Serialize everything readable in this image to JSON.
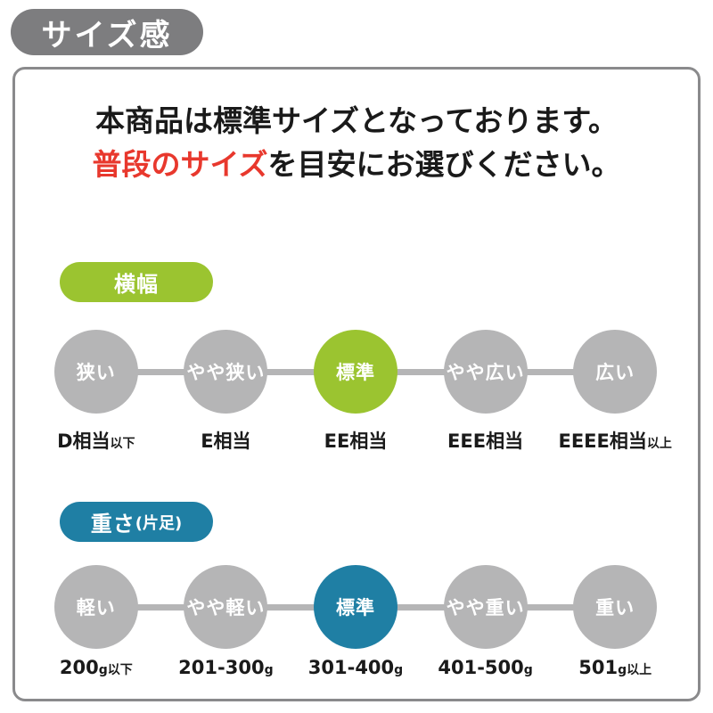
{
  "title_badge": "サイズ感",
  "panel": {
    "heading_line1": "本商品は標準サイズとなっております。",
    "heading_line2_highlight": "普段のサイズ",
    "heading_line2_rest": "を目安にお選びください。",
    "sections": [
      {
        "id": "width",
        "badge_label": "横幅",
        "badge_suffix": "",
        "steps": [
          {
            "circle": "狭い",
            "active": false,
            "label_main": "D相当",
            "label_suffix": "以下"
          },
          {
            "circle": "やや狭い",
            "active": false,
            "label_main": "E相当",
            "label_suffix": ""
          },
          {
            "circle": "標準",
            "active": true,
            "label_main": "EE相当",
            "label_suffix": ""
          },
          {
            "circle": "やや広い",
            "active": false,
            "label_main": "EEE相当",
            "label_suffix": ""
          },
          {
            "circle": "広い",
            "active": false,
            "label_main": "EEEE相当",
            "label_suffix": "以上"
          }
        ]
      },
      {
        "id": "weight",
        "badge_label": "重さ",
        "badge_suffix": "(片足)",
        "steps": [
          {
            "circle": "軽い",
            "active": false,
            "label_main": "200",
            "label_suffix": "g以下"
          },
          {
            "circle": "やや軽い",
            "active": false,
            "label_main": "201-300",
            "label_suffix": "g"
          },
          {
            "circle": "標準",
            "active": true,
            "label_main": "301-400",
            "label_suffix": "g"
          },
          {
            "circle": "やや重い",
            "active": false,
            "label_main": "401-500",
            "label_suffix": "g"
          },
          {
            "circle": "重い",
            "active": false,
            "label_main": "501",
            "label_suffix": "g以上"
          }
        ]
      }
    ]
  },
  "theme": {
    "badge_gray": "#7d7d7f",
    "border_gray": "#8a8a8c",
    "circle_gray": "#b5b5b6",
    "green": "#9bc430",
    "blue": "#1f7fa4",
    "red": "#e8382d",
    "ink": "#1a1a1a"
  }
}
